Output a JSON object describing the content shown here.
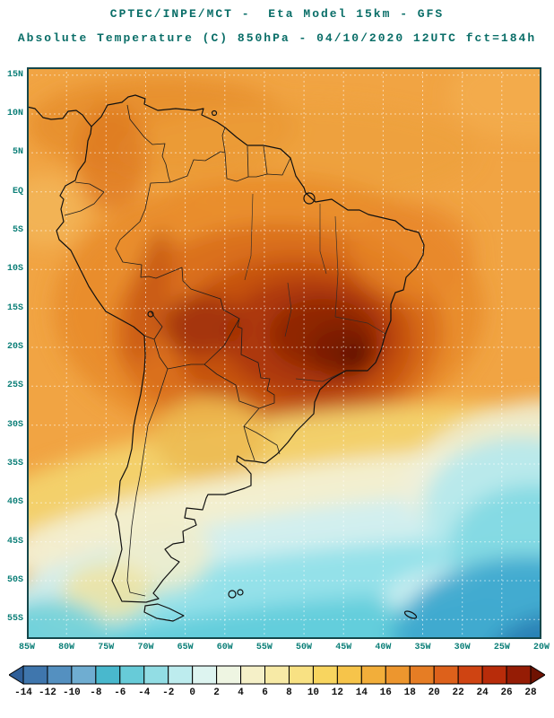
{
  "header": {
    "line1": "CPTEC/INPE/MCT -  Eta Model 15km - GFS",
    "line2": "Absolute Temperature (C) 850hPa - 04/10/2020 12UTC fct=184h",
    "title_color": "#0a6e68"
  },
  "map": {
    "lat_labels": [
      "15N",
      "10N",
      "5N",
      "EQ",
      "5S",
      "10S",
      "15S",
      "20S",
      "25S",
      "30S",
      "35S",
      "40S",
      "45S",
      "50S",
      "55S"
    ],
    "lon_labels": [
      "85W",
      "80W",
      "75W",
      "70W",
      "65W",
      "60W",
      "55W",
      "50W",
      "45W",
      "40W",
      "35W",
      "30W",
      "25W",
      "20W"
    ],
    "label_color": "#0c7f78"
  },
  "colorbar": {
    "tick_labels": [
      "-14",
      "-12",
      "-10",
      "-8",
      "-6",
      "-4",
      "-2",
      "0",
      "2",
      "4",
      "6",
      "8",
      "10",
      "12",
      "14",
      "16",
      "18",
      "20",
      "22",
      "24",
      "26",
      "28"
    ],
    "colors": [
      "#2f5f99",
      "#3f76ad",
      "#5490c0",
      "#6fadd1",
      "#49b8cd",
      "#67cbd8",
      "#92dde4",
      "#bdecee",
      "#ddf4f0",
      "#eef5e2",
      "#f5f0c8",
      "#f7eaa6",
      "#f8e183",
      "#f8d55f",
      "#f6c44a",
      "#f2ae3a",
      "#ed962e",
      "#e67d24",
      "#dd611b",
      "#cf4412",
      "#b82c0a",
      "#951c05",
      "#6f1202"
    ]
  },
  "chart_data": {
    "type": "heatmap",
    "title": "Absolute Temperature (C) 850hPa",
    "source": "CPTEC/INPE/MCT",
    "model": "Eta Model 15km - GFS",
    "valid": "04/10/2020 12UTC fct=184h",
    "units": "C",
    "scale_ticks": [
      -14,
      -12,
      -10,
      -8,
      -6,
      -4,
      -2,
      0,
      2,
      4,
      6,
      8,
      10,
      12,
      14,
      16,
      18,
      20,
      22,
      24,
      26,
      28
    ],
    "lat_range": [
      "15N",
      "55S"
    ],
    "lon_range": [
      "85W",
      "20W"
    ]
  }
}
